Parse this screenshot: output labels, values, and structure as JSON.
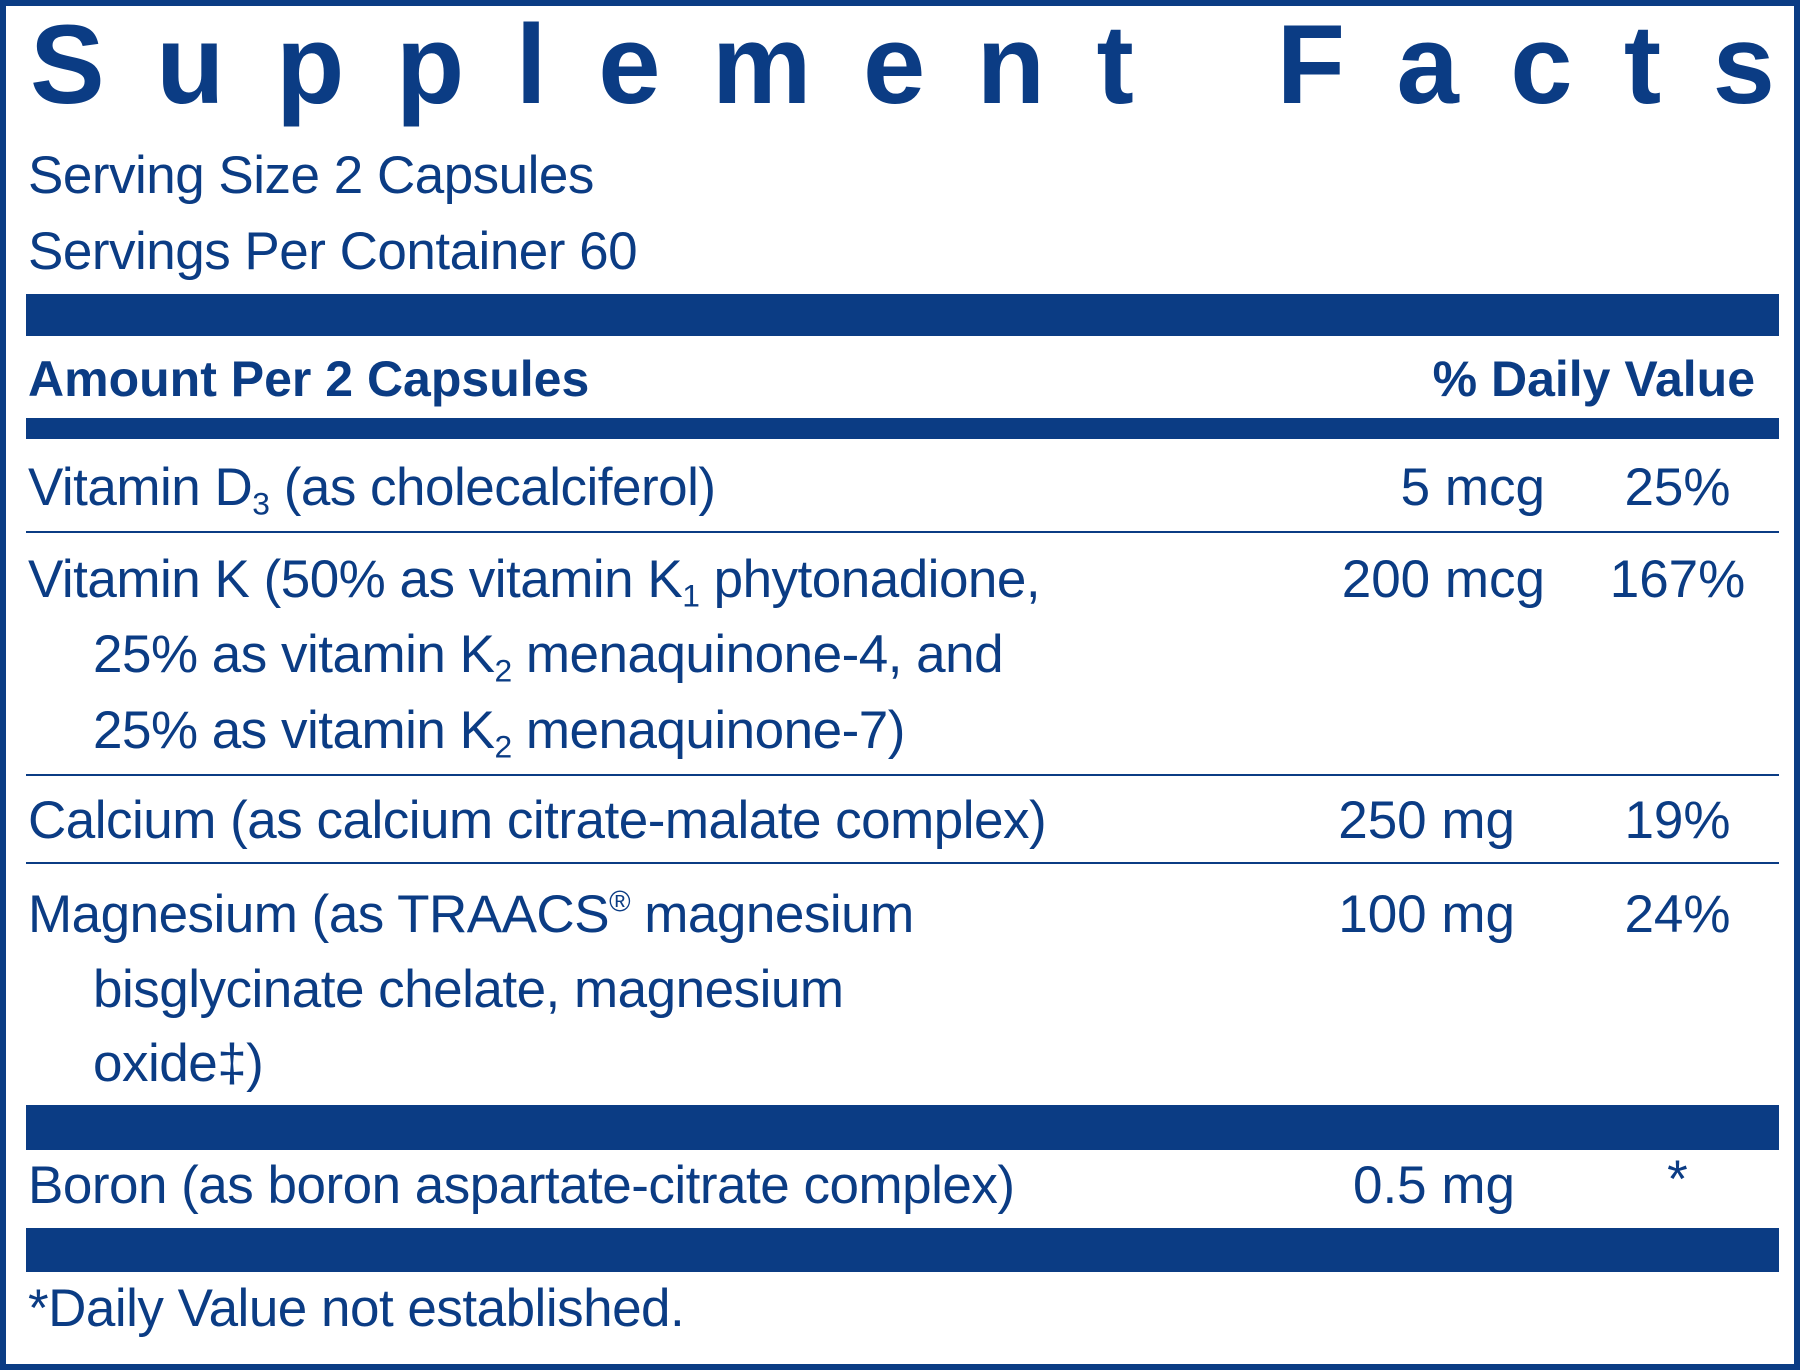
{
  "title": "Supplement Facts",
  "serving_size": "Serving Size 2 Capsules",
  "servings_per_container": "Servings Per Container 60",
  "header": {
    "amount": "Amount Per 2 Capsules",
    "daily_value": "% Daily Value"
  },
  "rows": [
    {
      "name_parts": [
        "Vitamin D",
        "3",
        " (as cholecalciferol)"
      ],
      "amount": "5 mcg",
      "dv": "25%"
    },
    {
      "lines": [
        [
          "Vitamin K (50% as vitamin K",
          "1",
          " phytonadione,"
        ],
        [
          "25% as vitamin K",
          "2",
          " menaquinone-4, and"
        ],
        [
          "25% as vitamin K",
          "2",
          " menaquinone-7)"
        ]
      ],
      "amount": "200 mcg",
      "dv": "167%"
    },
    {
      "name": "Calcium (as calcium citrate-malate complex)",
      "amount": "250 mg",
      "dv": "19%"
    },
    {
      "lines": [
        [
          "Magnesium (as TRAACS",
          "®",
          " magnesium"
        ],
        [
          "bisglycinate chelate, magnesium"
        ],
        [
          "oxide‡)"
        ]
      ],
      "amount": "100 mg",
      "dv": "24%"
    },
    {
      "name": "Boron (as boron aspartate-citrate complex)",
      "amount": "0.5 mg",
      "dv": "*"
    }
  ],
  "footnote": "*Daily Value not established.",
  "colors": {
    "brand": "#0b3c84"
  }
}
